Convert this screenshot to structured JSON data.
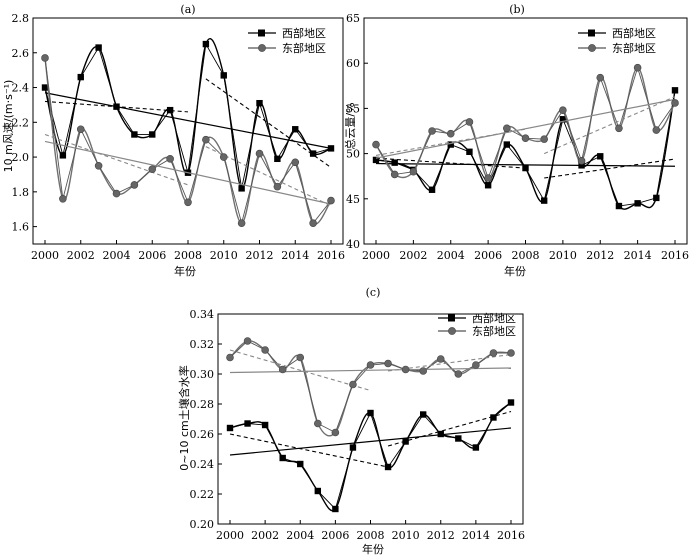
{
  "colors": {
    "west": "#000000",
    "east": "#555555",
    "east_marker": "#666666",
    "east_smooth": "#707070",
    "east_trend": "#888888",
    "east_dashed": "#888888"
  },
  "chart_data": [
    {
      "panel": "(a)",
      "type": "line",
      "xlabel": "年份",
      "ylabel": "10 m风速/(m·s⁻¹)",
      "x": [
        2000,
        2001,
        2002,
        2003,
        2004,
        2005,
        2006,
        2007,
        2008,
        2009,
        2010,
        2011,
        2012,
        2013,
        2014,
        2015,
        2016
      ],
      "xticks": [
        "2000",
        "2002",
        "2004",
        "2006",
        "2008",
        "2010",
        "2012",
        "2014",
        "2016"
      ],
      "ylim": [
        1.5,
        2.8
      ],
      "yticks": [
        "1.6",
        "1.8",
        "2.0",
        "2.2",
        "2.4",
        "2.6",
        "2.8"
      ],
      "legend_position": "top-right",
      "series": [
        {
          "name": "西部地区",
          "marker": "square",
          "values": [
            2.4,
            2.01,
            2.46,
            2.63,
            2.29,
            2.13,
            2.13,
            2.27,
            1.91,
            2.65,
            2.47,
            1.82,
            2.31,
            1.99,
            2.16,
            2.02,
            2.05
          ],
          "trend_full": [
            2.37,
            2.05
          ],
          "trend_first": [
            2.32,
            2.26,
            2000,
            2008
          ],
          "trend_second": [
            2.45,
            1.94,
            2009,
            2016
          ]
        },
        {
          "name": "东部地区",
          "marker": "circle",
          "values": [
            2.57,
            1.76,
            2.16,
            1.95,
            1.79,
            1.84,
            1.93,
            1.99,
            1.74,
            2.1,
            2.0,
            1.62,
            2.02,
            1.83,
            1.97,
            1.62,
            1.75
          ],
          "trend_full": [
            2.09,
            1.73
          ],
          "trend_first": [
            2.13,
            1.84,
            2000,
            2008
          ],
          "trend_second": [
            2.06,
            1.72,
            2009,
            2016
          ]
        }
      ]
    },
    {
      "panel": "(b)",
      "type": "line",
      "xlabel": "年份",
      "ylabel": "总云量/%",
      "x": [
        2000,
        2001,
        2002,
        2003,
        2004,
        2005,
        2006,
        2007,
        2008,
        2009,
        2010,
        2011,
        2012,
        2013,
        2014,
        2015,
        2016
      ],
      "xticks": [
        "2000",
        "2002",
        "2004",
        "2006",
        "2008",
        "2010",
        "2012",
        "2014",
        "2016"
      ],
      "ylim": [
        40,
        65
      ],
      "yticks": [
        "40",
        "45",
        "50",
        "55",
        "60",
        "65"
      ],
      "legend_position": "top-right",
      "series": [
        {
          "name": "西部地区",
          "marker": "square",
          "values": [
            49.3,
            49.0,
            48.2,
            46.0,
            51.0,
            50.2,
            46.5,
            51.0,
            48.4,
            44.8,
            53.8,
            48.7,
            49.7,
            44.2,
            44.5,
            45.1,
            57.0
          ],
          "trend_full": [
            48.9,
            48.6
          ],
          "trend_first": [
            49.5,
            48.4,
            2000,
            2008
          ],
          "trend_second": [
            47.3,
            49.4,
            2009,
            2016
          ]
        },
        {
          "name": "东部地区",
          "marker": "circle",
          "values": [
            51.0,
            47.7,
            48.0,
            52.5,
            52.2,
            53.5,
            47.3,
            52.8,
            51.7,
            51.6,
            54.8,
            49.2,
            58.4,
            52.8,
            59.5,
            52.6,
            55.6
          ],
          "trend_full": [
            49.5,
            56.0
          ],
          "trend_first": [
            49.8,
            52.7,
            2000,
            2008
          ],
          "trend_second": [
            50.0,
            56.3,
            2009,
            2016
          ]
        }
      ]
    },
    {
      "panel": "(c)",
      "type": "line",
      "xlabel": "年份",
      "ylabel": "0~10 cm土壤含水率",
      "x": [
        2000,
        2001,
        2002,
        2003,
        2004,
        2005,
        2006,
        2007,
        2008,
        2009,
        2010,
        2011,
        2012,
        2013,
        2014,
        2015,
        2016
      ],
      "xticks": [
        "2000",
        "2002",
        "2004",
        "2006",
        "2008",
        "2010",
        "2012",
        "2014",
        "2016"
      ],
      "ylim": [
        0.2,
        0.34
      ],
      "yticks": [
        "0.20",
        "0.22",
        "0.24",
        "0.26",
        "0.28",
        "0.30",
        "0.32",
        "0.34"
      ],
      "legend_position": "top-right",
      "series": [
        {
          "name": "西部地区",
          "marker": "square",
          "values": [
            0.264,
            0.267,
            0.266,
            0.244,
            0.24,
            0.222,
            0.21,
            0.251,
            0.274,
            0.238,
            0.255,
            0.273,
            0.26,
            0.257,
            0.251,
            0.271,
            0.281
          ],
          "trend_full": [
            0.246,
            0.264
          ],
          "trend_first": [
            0.26,
            0.238,
            2000,
            2009
          ],
          "trend_second": [
            0.252,
            0.275,
            2009,
            2016
          ]
        },
        {
          "name": "东部地区",
          "marker": "circle",
          "values": [
            0.311,
            0.322,
            0.316,
            0.303,
            0.311,
            0.267,
            0.261,
            0.293,
            0.306,
            0.307,
            0.303,
            0.302,
            0.31,
            0.3,
            0.306,
            0.314,
            0.314
          ],
          "trend_full": [
            0.301,
            0.304
          ],
          "trend_first": [
            0.316,
            0.289,
            2000,
            2008
          ],
          "trend_second": [
            0.302,
            0.313,
            2009,
            2016
          ]
        }
      ]
    }
  ]
}
